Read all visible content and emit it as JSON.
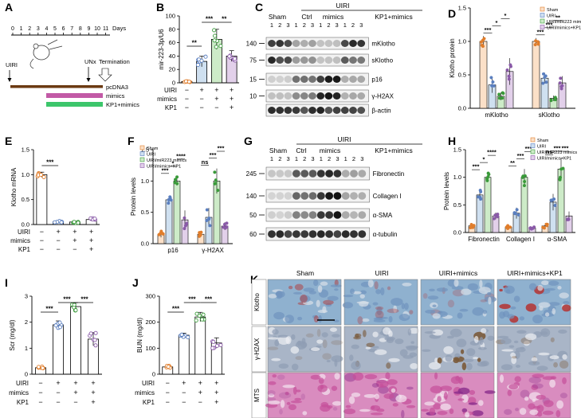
{
  "panels": {
    "A": {
      "letter": "A",
      "ticks": [
        "0",
        "1",
        "2",
        "3",
        "4",
        "5",
        "6",
        "7",
        "8",
        "9",
        "10",
        "11"
      ],
      "days_label": "Days",
      "uiri_label": "UIRI",
      "unx_label": "UNx",
      "termination_label": "Termination",
      "legend": [
        "pcDNA3",
        "mimics",
        "KP1+mimics"
      ],
      "colors": {
        "pcdna3": "#6b3a12",
        "mimics": "#c25aa6",
        "kp1": "#3cc66b"
      }
    },
    "B": {
      "letter": "B"
    },
    "C": {
      "letter": "C",
      "uiri_header": "UIRI",
      "groups": [
        "Sham",
        "Ctrl",
        "mimics",
        "KP1+mimics"
      ],
      "lanes": [
        "1",
        "2",
        "3",
        "1",
        "2",
        "3",
        "1",
        "2",
        "3",
        "1",
        "2",
        "3"
      ],
      "mw": [
        "140",
        "75",
        "15",
        "10"
      ],
      "bands": [
        "mKlotho",
        "sKlotho",
        "p16",
        "γ-H2AX",
        "β-actin"
      ]
    },
    "D": {
      "letter": "D"
    },
    "E": {
      "letter": "E"
    },
    "F": {
      "letter": "F"
    },
    "G": {
      "letter": "G",
      "uiri_header": "UIRI",
      "groups": [
        "Sham",
        "Ctrl",
        "mimics",
        "KP1+mimics"
      ],
      "lanes": [
        "1",
        "2",
        "3",
        "1",
        "2",
        "3",
        "1",
        "2",
        "3",
        "1",
        "2",
        "3"
      ],
      "mw": [
        "245",
        "140",
        "50",
        "60"
      ],
      "bands": [
        "Fibronectin",
        "Collagen I",
        "α-SMA",
        "α-tubulin"
      ]
    },
    "H": {
      "letter": "H"
    },
    "I": {
      "letter": "I"
    },
    "J": {
      "letter": "J"
    },
    "K": {
      "letter": "K",
      "columns": [
        "Sham",
        "UIRI",
        "UIRI+mimics",
        "UIRI+mimics+KP1"
      ],
      "rows": [
        "Klotho",
        "γ-H2AX",
        "MTS"
      ]
    }
  },
  "chart_data": [
    {
      "id": "B",
      "type": "bar",
      "ylabel": "mir-223-3p/U6",
      "ylim": [
        0,
        100
      ],
      "yticks": [
        "0",
        "20",
        "40",
        "60",
        "80",
        "100"
      ],
      "categories": [
        "Sham",
        "UIRI",
        "UIRI+mimics",
        "UIRI+mimics+KP1"
      ],
      "values": [
        2,
        32,
        65,
        40
      ],
      "errors": [
        1,
        8,
        15,
        8
      ],
      "colors": [
        "#fbe0c8",
        "#cfe0f0",
        "#cdebc8",
        "#e2d0ea"
      ],
      "point_colors": [
        "#e07d2b",
        "#5a7fc0",
        "#3a9a3a",
        "#8a5aa8"
      ],
      "treat_rows": [
        {
          "label": "UIRI",
          "marks": [
            "−",
            "+",
            "+",
            "+"
          ]
        },
        {
          "label": "mimics",
          "marks": [
            "−",
            "−",
            "+",
            "+"
          ]
        },
        {
          "label": "KP1",
          "marks": [
            "−",
            "−",
            "−",
            "+"
          ]
        }
      ],
      "sig": [
        {
          "label": "**"
        },
        {
          "label": "***"
        },
        {
          "label": "**"
        }
      ]
    },
    {
      "id": "D",
      "type": "bar",
      "ylabel": "Klotho protein",
      "ylim": [
        0,
        1.5
      ],
      "yticks": [
        "0.0",
        "0.5",
        "1.0",
        "1.5"
      ],
      "groups": [
        "mKlotho",
        "sKlotho"
      ],
      "series": [
        {
          "name": "Sham",
          "values": [
            1.0,
            1.0
          ]
        },
        {
          "name": "UIRI",
          "values": [
            0.35,
            0.45
          ]
        },
        {
          "name": "UIRI/miR223 mimics",
          "values": [
            0.18,
            0.15
          ]
        },
        {
          "name": "UIRI/mimics+KP1",
          "values": [
            0.55,
            0.38
          ]
        }
      ],
      "errors": [
        [
          0.08,
          0.05
        ],
        [
          0.12,
          0.08
        ],
        [
          0.06,
          0.04
        ],
        [
          0.2,
          0.1
        ]
      ],
      "colors": [
        "#fbe0c8",
        "#cfe0f0",
        "#cdebc8",
        "#e2d0ea"
      ],
      "point_colors": [
        "#e07d2b",
        "#5a7fc0",
        "#3a9a3a",
        "#8a5aa8"
      ],
      "sig": [
        {
          "label": "***"
        },
        {
          "label": "*"
        },
        {
          "label": "*"
        },
        {
          "label": "***"
        },
        {
          "label": "***"
        },
        {
          "label": "**"
        }
      ]
    },
    {
      "id": "E",
      "type": "bar",
      "ylabel": "Klotho mRNA",
      "ylim": [
        0,
        1.5
      ],
      "yticks": [
        "0.0",
        "0.5",
        "1.0",
        "1.5"
      ],
      "categories": [
        "Sham",
        "UIRI",
        "UIRI+mimics",
        "UIRI+mimics+KP1"
      ],
      "values": [
        1.0,
        0.06,
        0.05,
        0.1
      ],
      "errors": [
        0.05,
        0.02,
        0.02,
        0.03
      ],
      "colors": [
        "#ffffff",
        "#ffffff",
        "#ffffff",
        "#ffffff"
      ],
      "point_colors": [
        "#e07d2b",
        "#5a7fc0",
        "#3a9a3a",
        "#8a5aa8"
      ],
      "treat_rows": [
        {
          "label": "UIRI",
          "marks": [
            "−",
            "+",
            "+",
            "+"
          ]
        },
        {
          "label": "mimics",
          "marks": [
            "−",
            "−",
            "+",
            "+"
          ]
        },
        {
          "label": "KP1",
          "marks": [
            "−",
            "−",
            "−",
            "+"
          ]
        }
      ],
      "sig": [
        {
          "label": "***"
        }
      ]
    },
    {
      "id": "F",
      "type": "bar",
      "ylabel": "Protein levels",
      "ylim": [
        0,
        1.5
      ],
      "yticks": [
        "0.0",
        "0.5",
        "1.0",
        "1.5"
      ],
      "groups": [
        "p16",
        "γ-H2AX"
      ],
      "series": [
        {
          "name": "Sham",
          "values": [
            0.15,
            0.15
          ]
        },
        {
          "name": "UIRI",
          "values": [
            0.7,
            0.42
          ]
        },
        {
          "name": "UIRI/miR223 mimics",
          "values": [
            1.0,
            1.0
          ]
        },
        {
          "name": "UIRI/mimics+KP1",
          "values": [
            0.38,
            0.28
          ]
        }
      ],
      "errors": [
        [
          0.05,
          0.04
        ],
        [
          0.06,
          0.15
        ],
        [
          0.07,
          0.2
        ],
        [
          0.15,
          0.06
        ]
      ],
      "colors": [
        "#fbe0c8",
        "#cfe0f0",
        "#cdebc8",
        "#e2d0ea"
      ],
      "point_colors": [
        "#e07d2b",
        "#5a7fc0",
        "#3a9a3a",
        "#8a5aa8"
      ],
      "sig": [
        {
          "label": "***"
        },
        {
          "label": "*"
        },
        {
          "label": "****"
        },
        {
          "label": "ns"
        },
        {
          "label": "***"
        },
        {
          "label": "***"
        }
      ]
    },
    {
      "id": "H",
      "type": "bar",
      "ylabel": "Protein levels",
      "ylim": [
        0,
        1.5
      ],
      "yticks": [
        "0.0",
        "0.5",
        "1.0",
        "1.5"
      ],
      "groups": [
        "Fibronectin",
        "Collagen I",
        "α-SMA"
      ],
      "series": [
        {
          "name": "Sham",
          "values": [
            0.12,
            0.1,
            0.12
          ]
        },
        {
          "name": "UIRI",
          "values": [
            0.68,
            0.35,
            0.55
          ]
        },
        {
          "name": "UIRI/miR223 mimics",
          "values": [
            1.0,
            1.0,
            1.15
          ]
        },
        {
          "name": "UIRI/mimics+KP1",
          "values": [
            0.3,
            0.08,
            0.3
          ]
        }
      ],
      "errors": [
        [
          0.04,
          0.03,
          0.04
        ],
        [
          0.1,
          0.1,
          0.15
        ],
        [
          0.08,
          0.15,
          0.2
        ],
        [
          0.06,
          0.02,
          0.08
        ]
      ],
      "colors": [
        "#fbe0c8",
        "#cfe0f0",
        "#cdebc8",
        "#e2d0ea"
      ],
      "point_colors": [
        "#e07d2b",
        "#5a7fc0",
        "#3a9a3a",
        "#8a5aa8"
      ],
      "sig": [
        {
          "label": "***"
        },
        {
          "label": "*"
        },
        {
          "label": "****"
        },
        {
          "label": "**"
        },
        {
          "label": "***"
        },
        {
          "label": "***"
        },
        {
          "label": "ns"
        },
        {
          "label": "***"
        },
        {
          "label": "***"
        }
      ]
    },
    {
      "id": "I",
      "type": "bar",
      "ylabel": "Scr (mg/dl)",
      "ylim": [
        0,
        3
      ],
      "yticks": [
        "0",
        "1",
        "2",
        "3"
      ],
      "categories": [
        "Sham",
        "UIRI",
        "UIRI+mimics",
        "UIRI+mimics+KP1"
      ],
      "values": [
        0.25,
        1.9,
        2.6,
        1.35
      ],
      "errors": [
        0.05,
        0.15,
        0.15,
        0.25
      ],
      "colors": [
        "#ffffff",
        "#ffffff",
        "#ffffff",
        "#ffffff"
      ],
      "point_colors": [
        "#e07d2b",
        "#5a7fc0",
        "#3a9a3a",
        "#8a5aa8"
      ],
      "treat_rows": [
        {
          "label": "UIRI",
          "marks": [
            "−",
            "+",
            "+",
            "+"
          ]
        },
        {
          "label": "mimics",
          "marks": [
            "−",
            "−",
            "+",
            "+"
          ]
        },
        {
          "label": "KP1",
          "marks": [
            "−",
            "−",
            "−",
            "+"
          ]
        }
      ],
      "sig": [
        {
          "label": "***"
        },
        {
          "label": "***"
        },
        {
          "label": "***"
        }
      ]
    },
    {
      "id": "J",
      "type": "bar",
      "ylabel": "BUN (mg/dl)",
      "ylim": [
        0,
        300
      ],
      "yticks": [
        "0",
        "100",
        "200",
        "300"
      ],
      "categories": [
        "Sham",
        "UIRI",
        "UIRI+mimics",
        "UIRI+mimics+KP1"
      ],
      "values": [
        28,
        150,
        220,
        120
      ],
      "errors": [
        5,
        8,
        18,
        20
      ],
      "colors": [
        "#ffffff",
        "#ffffff",
        "#ffffff",
        "#ffffff"
      ],
      "point_colors": [
        "#e07d2b",
        "#5a7fc0",
        "#3a9a3a",
        "#8a5aa8"
      ],
      "treat_rows": [
        {
          "label": "UIRI",
          "marks": [
            "−",
            "+",
            "+",
            "+"
          ]
        },
        {
          "label": "mimics",
          "marks": [
            "−",
            "−",
            "+",
            "+"
          ]
        },
        {
          "label": "KP1",
          "marks": [
            "−",
            "−",
            "−",
            "+"
          ]
        }
      ],
      "sig": [
        {
          "label": "***"
        },
        {
          "label": "***"
        },
        {
          "label": "***"
        }
      ]
    }
  ]
}
